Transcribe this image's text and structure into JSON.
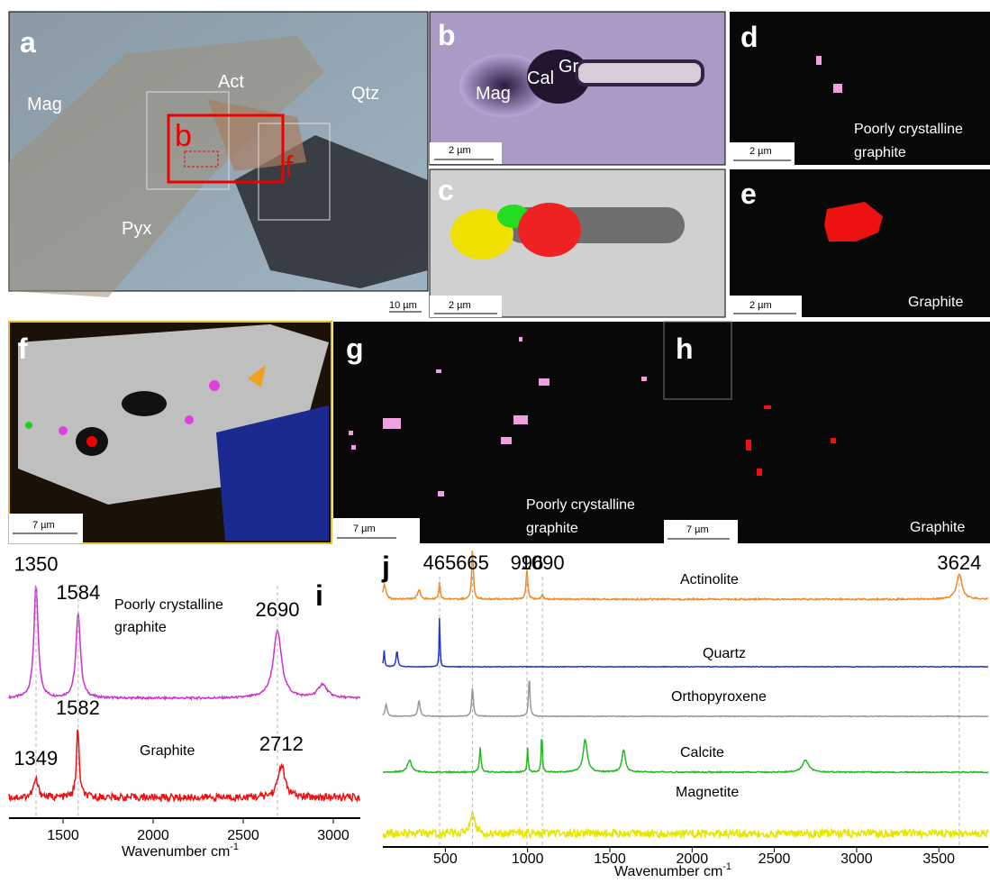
{
  "panels": [
    {
      "letter": "a",
      "labels": [
        "Mag",
        "Act",
        "Qtz",
        "Pyx"
      ],
      "boxes": [
        "b",
        "f"
      ],
      "scale_bar": "10 µm"
    },
    {
      "letter": "b",
      "labels": [
        "Mag",
        "Cal",
        "Gr"
      ],
      "scale_bar": "2 µm"
    },
    {
      "letter": "c",
      "scale_bar": "2 µm"
    },
    {
      "letter": "d",
      "caption": [
        "Poorly crystalline",
        "graphite"
      ],
      "scale_bar": "2 µm"
    },
    {
      "letter": "e",
      "caption": [
        "Graphite"
      ],
      "scale_bar": "2 µm"
    },
    {
      "letter": "f",
      "scale_bar": "7 µm"
    },
    {
      "letter": "g",
      "caption": [
        "Poorly crystalline",
        "graphite"
      ],
      "scale_bar": "7 µm"
    },
    {
      "letter": "h",
      "caption": [
        "Graphite"
      ],
      "scale_bar": "7 µm"
    }
  ],
  "spectra": [
    {
      "type": "line",
      "letter": "i",
      "xlabel": "Wavenumber cm",
      "xlabel_sup": "-1",
      "xlim": [
        1200,
        3150
      ],
      "xticks": [
        1500,
        2000,
        2500,
        3000
      ],
      "series": [
        {
          "name": [
            "Poorly crystalline",
            "graphite"
          ],
          "color": "#cc33cc",
          "noise": 0.02,
          "peak_labels": [
            1350,
            1584,
            2690
          ],
          "peaks": [
            {
              "x": 1350,
              "height": 1.0,
              "width": 28
            },
            {
              "x": 1584,
              "height": 0.75,
              "width": 30
            },
            {
              "x": 2690,
              "height": 0.6,
              "width": 55
            },
            {
              "x": 2940,
              "height": 0.12,
              "width": 60
            }
          ]
        },
        {
          "name": [
            "Graphite"
          ],
          "color": "#ee1111",
          "noise": 0.1,
          "peak_labels": [
            1582,
            1349,
            2712
          ],
          "peaks": [
            {
              "x": 1349,
              "height": 0.25,
              "width": 30
            },
            {
              "x": 1582,
              "height": 0.95,
              "width": 18
            },
            {
              "x": 2712,
              "height": 0.45,
              "width": 45
            }
          ]
        }
      ]
    },
    {
      "type": "line",
      "letter": "j",
      "xlabel": "Wavenumber cm",
      "xlabel_sup": "-1",
      "xlim": [
        120,
        3800
      ],
      "xticks": [
        500,
        1000,
        1500,
        2000,
        2500,
        3000,
        3500
      ],
      "series": [
        {
          "name": [
            "Actinolite"
          ],
          "color": "#f08a24",
          "noise": 0.03,
          "peak_labels": [
            465,
            665,
            996,
            1090,
            3624
          ],
          "peaks": [
            {
              "x": 130,
              "height": 0.3,
              "width": 20
            },
            {
              "x": 340,
              "height": 0.2,
              "width": 20
            },
            {
              "x": 465,
              "height": 0.35,
              "width": 10
            },
            {
              "x": 665,
              "height": 1.0,
              "width": 12
            },
            {
              "x": 996,
              "height": 0.6,
              "width": 12
            },
            {
              "x": 1090,
              "height": 0.1,
              "width": 12
            },
            {
              "x": 3624,
              "height": 0.5,
              "width": 40
            }
          ]
        },
        {
          "name": [
            "Quartz"
          ],
          "color": "#2233dd",
          "noise": 0.01,
          "peak_labels": [],
          "peaks": [
            {
              "x": 128,
              "height": 0.3,
              "width": 8
            },
            {
              "x": 206,
              "height": 0.3,
              "width": 12
            },
            {
              "x": 465,
              "height": 1.0,
              "width": 6
            }
          ]
        },
        {
          "name": [
            "Orthopyroxene"
          ],
          "color": "#999999",
          "noise": 0.02,
          "peak_labels": [],
          "peaks": [
            {
              "x": 140,
              "height": 0.3,
              "width": 15
            },
            {
              "x": 340,
              "height": 0.4,
              "width": 15
            },
            {
              "x": 665,
              "height": 0.7,
              "width": 12
            },
            {
              "x": 1010,
              "height": 1.0,
              "width": 10
            }
          ]
        },
        {
          "name": [
            "Calcite"
          ],
          "color": "#22bb22",
          "noise": 0.03,
          "peak_labels": [],
          "peaks": [
            {
              "x": 282,
              "height": 0.3,
              "width": 30
            },
            {
              "x": 712,
              "height": 0.6,
              "width": 12
            },
            {
              "x": 1000,
              "height": 0.6,
              "width": 8
            },
            {
              "x": 1086,
              "height": 1.0,
              "width": 8
            },
            {
              "x": 1350,
              "height": 0.8,
              "width": 30
            },
            {
              "x": 1584,
              "height": 0.55,
              "width": 25
            },
            {
              "x": 2690,
              "height": 0.3,
              "width": 45
            }
          ]
        },
        {
          "name": [
            "Magnetite"
          ],
          "color": "#e6e600",
          "noise": 0.3,
          "peak_labels": [],
          "peaks": [
            {
              "x": 665,
              "height": 0.8,
              "width": 30
            }
          ]
        }
      ]
    }
  ]
}
